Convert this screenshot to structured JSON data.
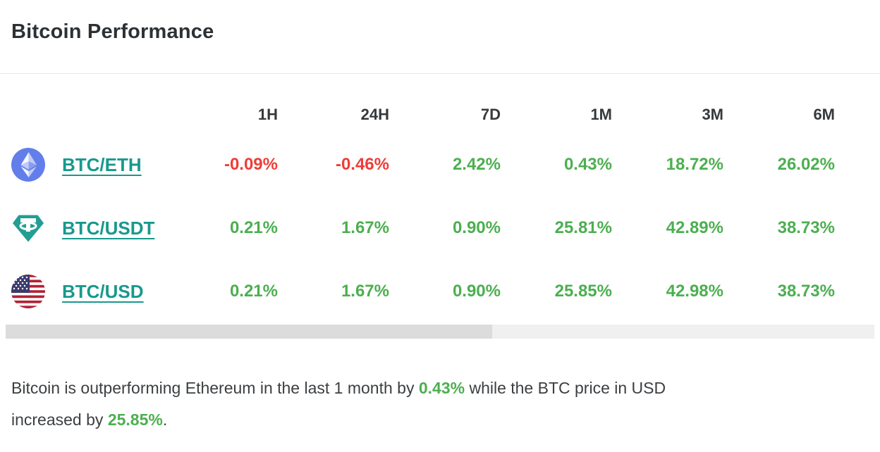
{
  "header": {
    "title": "Bitcoin Performance"
  },
  "table": {
    "columns": [
      "1H",
      "24H",
      "7D",
      "1M",
      "3M",
      "6M"
    ],
    "rows": [
      {
        "pair": "BTC/ETH",
        "icon": "ethereum-icon",
        "values": [
          {
            "text": "-0.09%",
            "direction": "down"
          },
          {
            "text": "-0.46%",
            "direction": "down"
          },
          {
            "text": "2.42%",
            "direction": "up"
          },
          {
            "text": "0.43%",
            "direction": "up"
          },
          {
            "text": "18.72%",
            "direction": "up"
          },
          {
            "text": "26.02%",
            "direction": "up"
          }
        ]
      },
      {
        "pair": "BTC/USDT",
        "icon": "tether-icon",
        "values": [
          {
            "text": "0.21%",
            "direction": "up"
          },
          {
            "text": "1.67%",
            "direction": "up"
          },
          {
            "text": "0.90%",
            "direction": "up"
          },
          {
            "text": "25.81%",
            "direction": "up"
          },
          {
            "text": "42.89%",
            "direction": "up"
          },
          {
            "text": "38.73%",
            "direction": "up"
          }
        ]
      },
      {
        "pair": "BTC/USD",
        "icon": "us-flag-icon",
        "values": [
          {
            "text": "0.21%",
            "direction": "up"
          },
          {
            "text": "1.67%",
            "direction": "up"
          },
          {
            "text": "0.90%",
            "direction": "up"
          },
          {
            "text": "25.85%",
            "direction": "up"
          },
          {
            "text": "42.98%",
            "direction": "up"
          },
          {
            "text": "38.73%",
            "direction": "up"
          }
        ]
      }
    ]
  },
  "scrollbar": {
    "thumb_width_pct": 56
  },
  "summary": {
    "segments": [
      {
        "text": "Bitcoin is outperforming Ethereum in the last 1 month by ",
        "highlight": false
      },
      {
        "text": "0.43%",
        "highlight": true
      },
      {
        "text": " while the BTC price in USD",
        "highlight": false
      },
      {
        "type": "linebreak"
      },
      {
        "text": "increased by ",
        "highlight": false
      },
      {
        "text": "25.85%",
        "highlight": true
      },
      {
        "text": ".",
        "highlight": false
      }
    ]
  },
  "colors": {
    "positive": "#4caf50",
    "negative": "#ee3d37",
    "link": "#17998d",
    "title_text": "#2d3134",
    "header_text": "#36393b",
    "body_text": "#3c3f42",
    "divider": "#e7e7e7",
    "scrollbar_track": "#f0f0f0",
    "scrollbar_thumb": "#dcdcdc",
    "ethereum_brand": "#627eea",
    "tether_brand": "#239e93",
    "flag_red": "#b22234",
    "flag_blue": "#3c3b6e"
  }
}
